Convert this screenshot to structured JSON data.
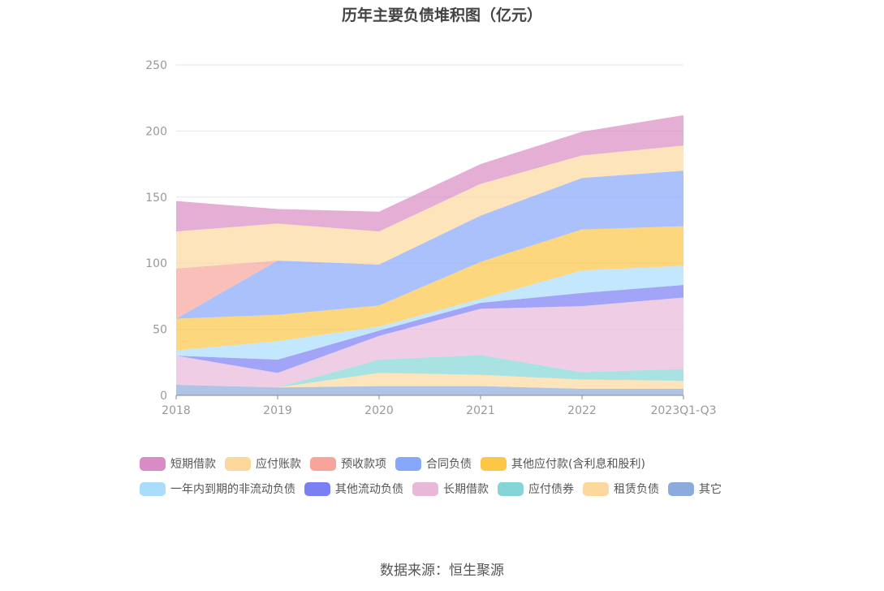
{
  "title": "历年主要负债堆积图（亿元）",
  "source": "数据来源：恒生聚源",
  "chart_data": {
    "type": "area",
    "stacked": true,
    "title": "历年主要负债堆积图（亿元）",
    "xlabel": "",
    "ylabel": "",
    "categories": [
      "2018",
      "2019",
      "2020",
      "2021",
      "2022",
      "2023Q1-Q3"
    ],
    "ylim": [
      0,
      250
    ],
    "yticks": [
      "0",
      "50",
      "100",
      "150",
      "200",
      "250"
    ],
    "grid": true,
    "legend_position": "bottom",
    "series": [
      {
        "name": "其它",
        "color": "#8caadc",
        "values": [
          8,
          6,
          7,
          7,
          5,
          5
        ]
      },
      {
        "name": "租赁负债",
        "color": "#fdd89c",
        "values": [
          0,
          0,
          10,
          8.5,
          7,
          6
        ]
      },
      {
        "name": "应付债券",
        "color": "#85d5d6",
        "values": [
          0,
          0,
          10,
          15,
          5.5,
          9
        ]
      },
      {
        "name": "长期借款",
        "color": "#e8b8d8",
        "values": [
          22,
          11,
          18,
          35,
          50,
          54
        ]
      },
      {
        "name": "其他流动负债",
        "color": "#7b7ff4",
        "values": [
          0,
          10,
          4,
          4.5,
          10,
          9.5
        ]
      },
      {
        "name": "一年内到期的非流动负债",
        "color": "#a9ddfb",
        "values": [
          4,
          14,
          3,
          3,
          17,
          14.5
        ]
      },
      {
        "name": "其他应付款(含利息和股利)",
        "color": "#fcc647",
        "values": [
          24,
          20,
          16,
          28,
          31,
          30
        ]
      },
      {
        "name": "合同负债",
        "color": "#87a7fb",
        "values": [
          0,
          41,
          31,
          35,
          39,
          42
        ]
      },
      {
        "name": "预收款项",
        "color": "#f8a49a",
        "values": [
          38,
          0,
          0,
          0,
          0,
          0
        ]
      },
      {
        "name": "应付账款",
        "color": "#fdd89c",
        "values": [
          28,
          28,
          25,
          24,
          17,
          19
        ]
      },
      {
        "name": "短期借款",
        "color": "#d98bc3",
        "values": [
          23,
          11,
          15,
          15,
          18,
          23
        ]
      }
    ],
    "legend_order": [
      "短期借款",
      "应付账款",
      "预收款项",
      "合同负债",
      "其他应付款(含利息和股利)",
      "一年内到期的非流动负债",
      "其他流动负债",
      "长期借款",
      "应付债券",
      "租赁负债",
      "其它"
    ]
  }
}
